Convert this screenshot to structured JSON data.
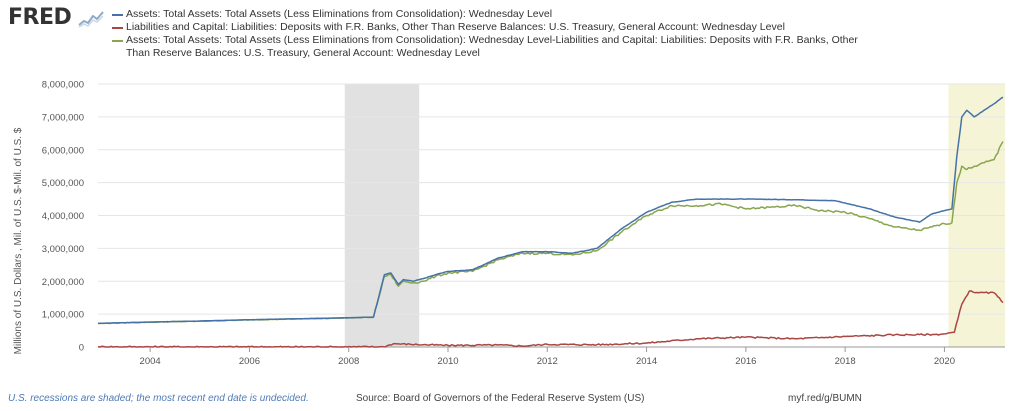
{
  "logo": {
    "text": "FRED"
  },
  "chart_data": {
    "type": "line",
    "title": "",
    "xlabel": "",
    "ylabel": "Millions of U.S. Dollars , Mil. of U.S. $-Mil. of U.S. $",
    "xlim": [
      2002.95,
      2021.22
    ],
    "ylim": [
      0,
      8000000
    ],
    "yticks": [
      0,
      1000000,
      2000000,
      3000000,
      4000000,
      5000000,
      6000000,
      7000000,
      8000000
    ],
    "ytick_labels": [
      "0",
      "1,000,000",
      "2,000,000",
      "3,000,000",
      "4,000,000",
      "5,000,000",
      "6,000,000",
      "7,000,000",
      "8,000,000"
    ],
    "xticks": [
      2004,
      2006,
      2008,
      2010,
      2012,
      2014,
      2016,
      2018,
      2020
    ],
    "xtick_labels": [
      "2004",
      "2006",
      "2008",
      "2010",
      "2012",
      "2014",
      "2016",
      "2018",
      "2020"
    ],
    "grid": true,
    "legend_position": "top",
    "recessions": [
      {
        "start": 2007.92,
        "end": 2009.42,
        "color": "#e1e1e1"
      },
      {
        "start": 2020.08,
        "end": 2021.22,
        "color": "#f6f4d6"
      }
    ],
    "series": [
      {
        "name": "Assets: Total Assets: Total Assets (Less Eliminations from Consolidation): Wednesday Level",
        "color": "#4572a7",
        "x": [
          2002.95,
          2004.0,
          2005.0,
          2006.0,
          2007.0,
          2008.0,
          2008.5,
          2008.72,
          2008.85,
          2009.0,
          2009.1,
          2009.3,
          2009.5,
          2009.75,
          2010.0,
          2010.5,
          2011.0,
          2011.5,
          2012.0,
          2012.5,
          2013.0,
          2013.5,
          2014.0,
          2014.5,
          2015.0,
          2016.0,
          2017.0,
          2017.8,
          2018.5,
          2019.0,
          2019.5,
          2019.75,
          2020.0,
          2020.15,
          2020.25,
          2020.35,
          2020.45,
          2020.6,
          2021.0,
          2021.18
        ],
        "values": [
          720000,
          760000,
          790000,
          830000,
          860000,
          890000,
          910000,
          2200000,
          2250000,
          1900000,
          2050000,
          2000000,
          2080000,
          2200000,
          2300000,
          2350000,
          2700000,
          2900000,
          2900000,
          2850000,
          3000000,
          3600000,
          4100000,
          4400000,
          4500000,
          4500000,
          4480000,
          4450000,
          4200000,
          3950000,
          3800000,
          4050000,
          4150000,
          4200000,
          5800000,
          7000000,
          7200000,
          7000000,
          7400000,
          7600000
        ]
      },
      {
        "name": "Liabilities and Capital: Liabilities: Deposits with F.R. Banks, Other Than Reserve Balances: U.S. Treasury, General Account: Wednesday Level",
        "color": "#aa4643",
        "x": [
          2002.95,
          2008.7,
          2008.9,
          2009.5,
          2010.0,
          2011.0,
          2011.5,
          2012.0,
          2013.0,
          2014.0,
          2015.0,
          2016.0,
          2017.0,
          2018.0,
          2019.0,
          2019.8,
          2020.0,
          2020.2,
          2020.35,
          2020.5,
          2020.7,
          2021.0,
          2021.18
        ],
        "values": [
          5000,
          5000,
          100000,
          70000,
          50000,
          60000,
          30000,
          80000,
          70000,
          120000,
          250000,
          300000,
          250000,
          320000,
          370000,
          380000,
          400000,
          450000,
          1300000,
          1700000,
          1650000,
          1650000,
          1350000
        ]
      },
      {
        "name": "Assets: Total Assets: Total Assets (Less Eliminations from Consolidation): Wednesday Level-Liabilities and Capital: Liabilities: Deposits with F.R. Banks, Other Than Reserve Balances: U.S. Treasury, General Account: Wednesday Level",
        "color": "#89a54e",
        "x": [
          2002.95,
          2004.0,
          2005.0,
          2006.0,
          2007.0,
          2008.0,
          2008.5,
          2008.72,
          2008.85,
          2009.0,
          2009.1,
          2009.3,
          2009.5,
          2009.75,
          2010.0,
          2010.5,
          2011.0,
          2011.5,
          2012.0,
          2012.5,
          2013.0,
          2013.5,
          2014.0,
          2014.5,
          2015.0,
          2015.5,
          2016.0,
          2016.5,
          2017.0,
          2017.5,
          2018.0,
          2018.5,
          2019.0,
          2019.5,
          2019.75,
          2020.0,
          2020.15,
          2020.25,
          2020.35,
          2020.45,
          2020.6,
          2021.0,
          2021.18
        ],
        "values": [
          715000,
          755000,
          785000,
          825000,
          855000,
          885000,
          905000,
          2150000,
          2200000,
          1850000,
          2000000,
          1950000,
          2000000,
          2150000,
          2250000,
          2300000,
          2650000,
          2850000,
          2850000,
          2800000,
          2930000,
          3500000,
          4000000,
          4300000,
          4300000,
          4350000,
          4200000,
          4250000,
          4300000,
          4150000,
          4100000,
          3900000,
          3650000,
          3550000,
          3650000,
          3750000,
          3780000,
          5000000,
          5500000,
          5400000,
          5500000,
          5700000,
          6250000
        ]
      }
    ]
  },
  "legend": {
    "items": [
      {
        "label": "Assets: Total Assets: Total Assets (Less Eliminations from Consolidation): Wednesday Level",
        "color": "#4572a7"
      },
      {
        "label": "Liabilities and Capital: Liabilities: Deposits with F.R. Banks, Other Than Reserve Balances: U.S. Treasury, General Account: Wednesday Level",
        "color": "#aa4643"
      },
      {
        "label": "Assets: Total Assets: Total Assets (Less Eliminations from Consolidation): Wednesday Level-Liabilities and Capital: Liabilities: Deposits with F.R. Banks, Other",
        "label_line2": "Than Reserve Balances: U.S. Treasury, General Account: Wednesday Level",
        "color": "#89a54e"
      }
    ]
  },
  "footer": {
    "recession_note": "U.S. recessions are shaded; the most recent end date is undecided.",
    "source": "Source: Board of Governors of the Federal Reserve System (US)",
    "shortlink": "myf.red/g/BUMN"
  }
}
